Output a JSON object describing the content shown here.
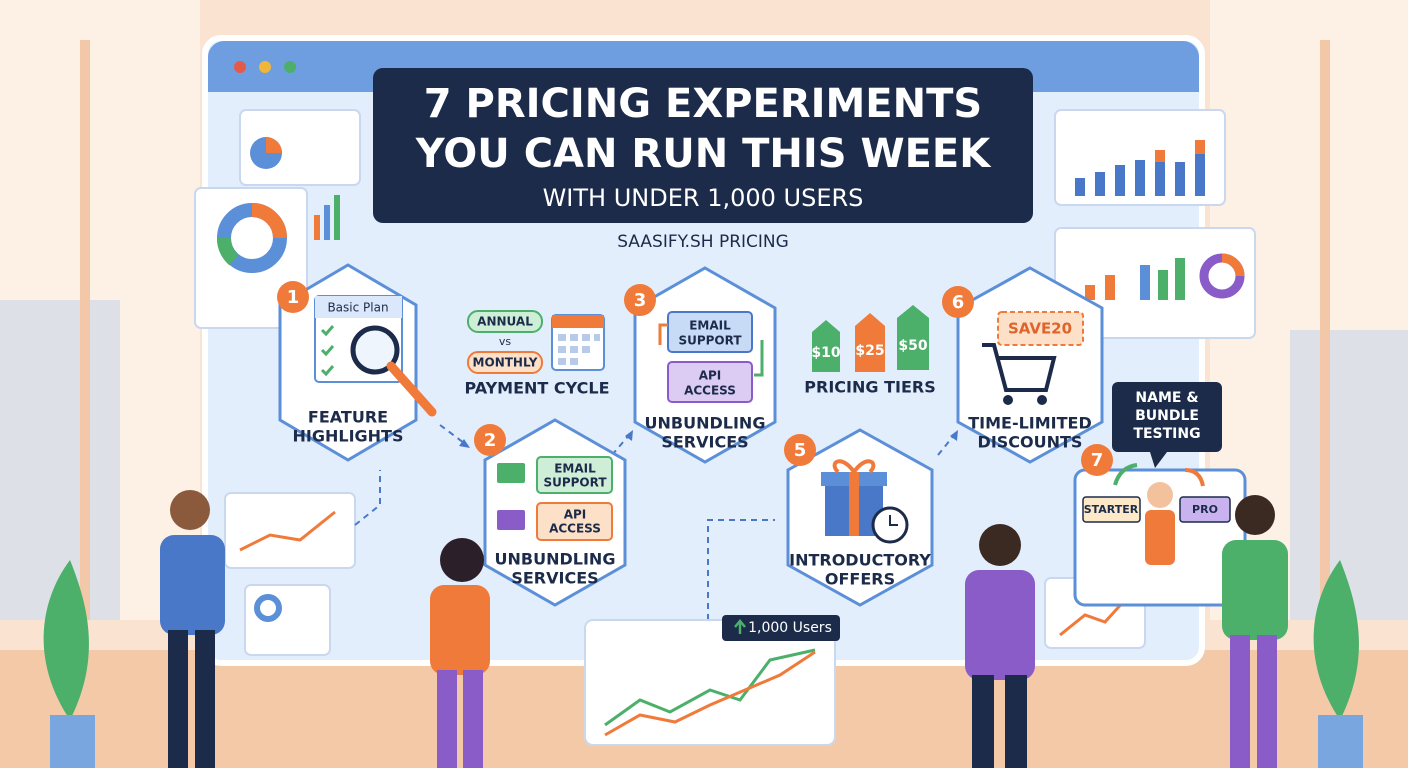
{
  "header": {
    "title_lines": [
      "7 PRICING EXPERIMENTS",
      "YOU CAN RUN THIS WEEK"
    ],
    "subtitle": "WITH UNDER 1,000 USERS",
    "brand": "SAASIFY.SH PRICING"
  },
  "steps": [
    {
      "number": "1",
      "label": [
        "FEATURE",
        "HIGHLIGHTS"
      ],
      "card": "Basic Plan"
    },
    {
      "number": "2",
      "label": [
        "UNBUNDLING",
        "SERVICES"
      ],
      "items": [
        [
          "EMAIL",
          "SUPPORT"
        ],
        [
          "API",
          "ACCESS"
        ]
      ]
    },
    {
      "number": "3",
      "label": [
        "UNBUNDLING",
        "SERVICES"
      ],
      "items": [
        [
          "EMAIL",
          "SUPPORT"
        ],
        [
          "API",
          "ACCESS"
        ]
      ]
    },
    {
      "number": "5",
      "label": [
        "INTRODUCTORY",
        "OFFERS"
      ]
    },
    {
      "number": "6",
      "label": [
        "TIME-LIMITED",
        "DISCOUNTS"
      ],
      "coupon": "SAVE20"
    },
    {
      "number": "7",
      "bubble": [
        "NAME &",
        "BUNDLE",
        "TESTING"
      ],
      "plans": [
        "STARTER",
        "PRO"
      ]
    }
  ],
  "payment_cycle": {
    "options": [
      "ANNUAL",
      "MONTHLY"
    ],
    "vs": "vs",
    "label": "PAYMENT CYCLE"
  },
  "pricing_tiers": {
    "prices": [
      "$10",
      "$25",
      "$50"
    ],
    "label": "PRICING TIERS"
  },
  "users_badge": "1,000 Users"
}
